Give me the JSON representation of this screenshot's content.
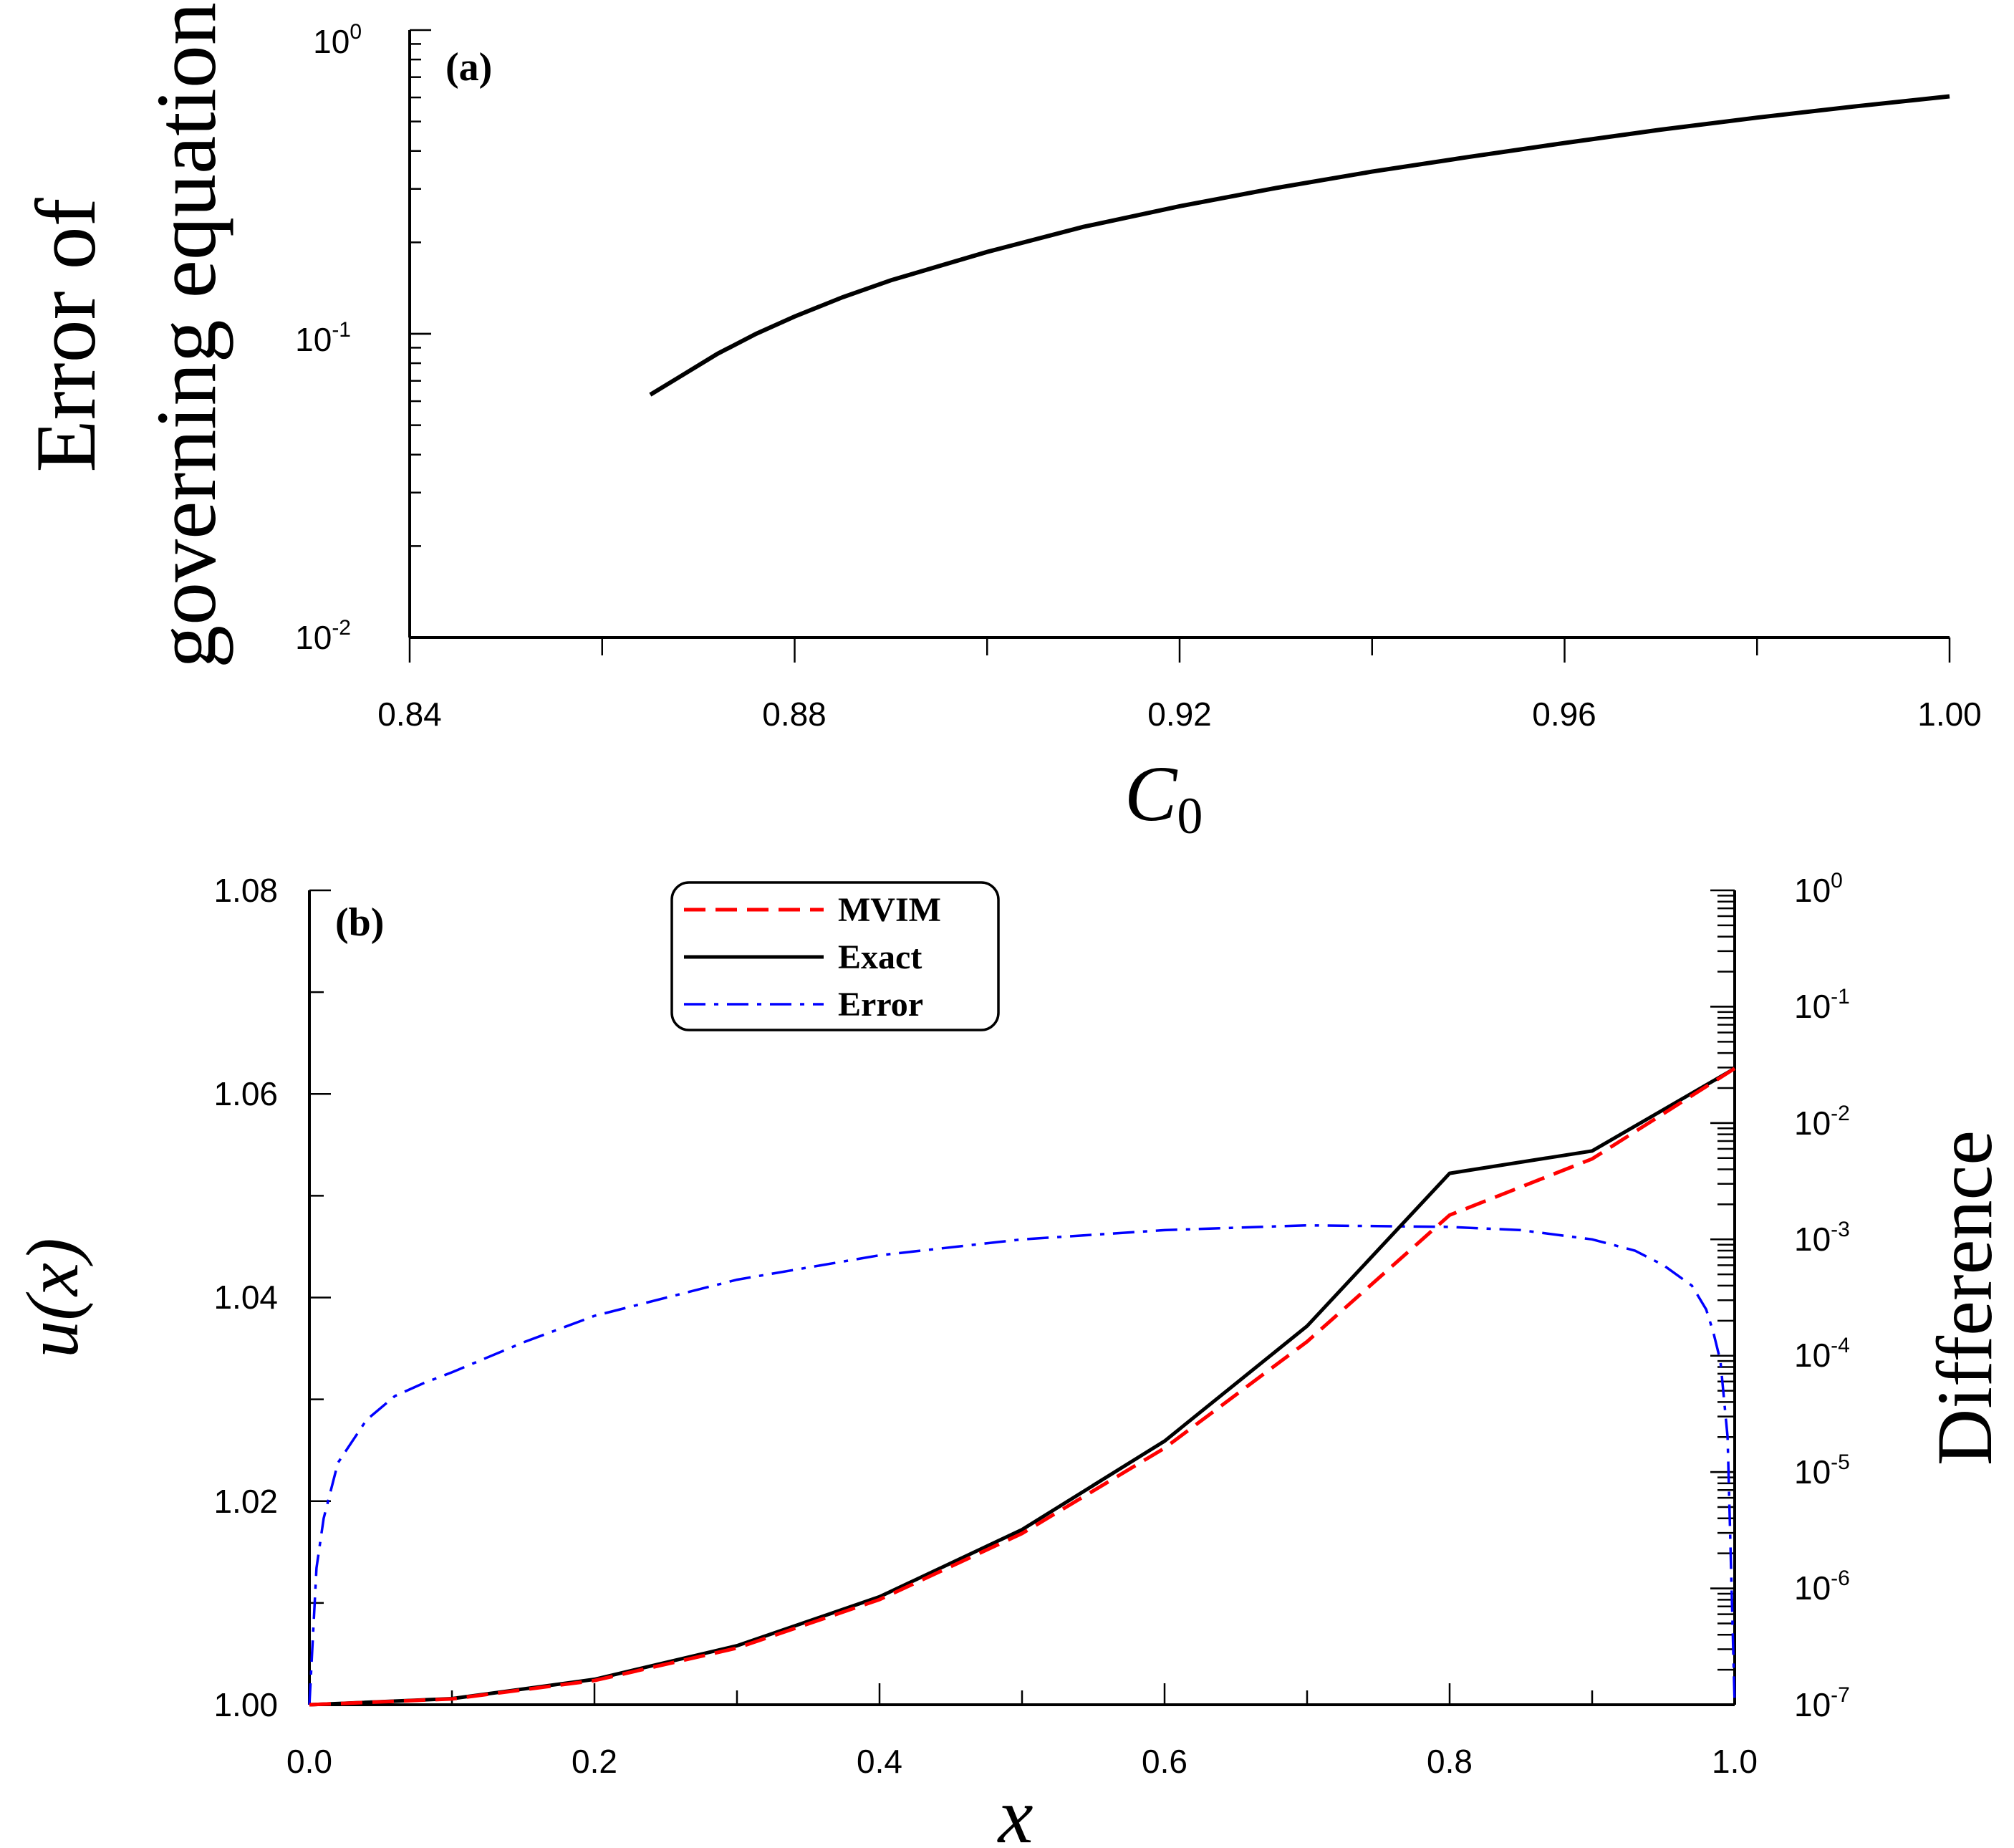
{
  "chart_data": [
    {
      "type": "line",
      "panel_label": "(a)",
      "title": "",
      "xlabel": "C",
      "xlabel_subscript": "0",
      "ylabel_lines": [
        "Error of",
        "governing equation"
      ],
      "xlim": [
        0.84,
        1.0
      ],
      "ylim": [
        0.01,
        1
      ],
      "yscale": "log",
      "x_tick_labels": [
        "0.84",
        "0.88",
        "0.92",
        "0.96",
        "1.00"
      ],
      "y_tick_labels": [
        {
          "base": "10",
          "exp": "0"
        },
        {
          "base": "10",
          "exp": "-1"
        },
        {
          "base": "10",
          "exp": "-2"
        }
      ],
      "series": [
        {
          "name": "Error of governing equation",
          "color": "#000000",
          "x": [
            0.865,
            0.868,
            0.872,
            0.876,
            0.88,
            0.885,
            0.89,
            0.9,
            0.91,
            0.92,
            0.93,
            0.94,
            0.95,
            0.96,
            0.97,
            0.98,
            0.99,
            1.0
          ],
          "y": [
            0.063,
            0.072,
            0.086,
            0.1,
            0.114,
            0.132,
            0.15,
            0.186,
            0.225,
            0.263,
            0.302,
            0.342,
            0.382,
            0.425,
            0.47,
            0.515,
            0.56,
            0.605
          ]
        }
      ]
    },
    {
      "type": "line",
      "panel_label": "(b)",
      "title": "",
      "xlabel": "x",
      "ylabel": "u(x)",
      "ylabel_right": "Difference",
      "xlim": [
        0,
        1
      ],
      "ylim": [
        1.0,
        1.08
      ],
      "ylim_right": [
        1e-07,
        1
      ],
      "yscale_right": "log",
      "x_tick_labels": [
        "0.0",
        "0.2",
        "0.4",
        "0.6",
        "0.8",
        "1.0"
      ],
      "y_tick_labels": [
        "1.00",
        "1.02",
        "1.04",
        "1.06",
        "1.08"
      ],
      "y_right_tick_labels": [
        {
          "base": "10",
          "exp": "0"
        },
        {
          "base": "10",
          "exp": "-1"
        },
        {
          "base": "10",
          "exp": "-2"
        },
        {
          "base": "10",
          "exp": "-3"
        },
        {
          "base": "10",
          "exp": "-4"
        },
        {
          "base": "10",
          "exp": "-5"
        },
        {
          "base": "10",
          "exp": "-6"
        },
        {
          "base": "10",
          "exp": "-7"
        }
      ],
      "legend": {
        "position": "top-center"
      },
      "series": [
        {
          "name": "MVIM",
          "color": "#ff0000",
          "dash": "long-dash",
          "axis": "left",
          "x": [
            0,
            0.1,
            0.2,
            0.3,
            0.4,
            0.5,
            0.6,
            0.7,
            0.8,
            0.9,
            1.0
          ],
          "y": [
            1.0,
            1.00057,
            1.00238,
            1.00557,
            1.01033,
            1.01682,
            1.02521,
            1.03567,
            1.0481,
            1.05362,
            1.0625
          ]
        },
        {
          "name": "Exact",
          "color": "#000000",
          "dash": "solid",
          "axis": "left",
          "x": [
            0,
            0.1,
            0.2,
            0.3,
            0.4,
            0.5,
            0.6,
            0.7,
            0.8,
            0.9,
            1.0
          ],
          "y": [
            1.0,
            1.0006,
            1.0025,
            1.0058,
            1.0106,
            1.0172,
            1.0259,
            1.0372,
            1.0522,
            1.0544,
            1.0625
          ]
        },
        {
          "name": "Error",
          "color": "#0000ff",
          "dash": "dash-dot",
          "axis": "right",
          "x": [
            0,
            0.005,
            0.01,
            0.02,
            0.04,
            0.06,
            0.08,
            0.1,
            0.15,
            0.2,
            0.3,
            0.4,
            0.5,
            0.6,
            0.7,
            0.8,
            0.85,
            0.9,
            0.93,
            0.95,
            0.97,
            0.98,
            0.985,
            0.99,
            0.995,
            1.0
          ],
          "y": [
            1e-07,
            1.5e-06,
            4e-06,
            1.2e-05,
            2.8e-05,
            4.5e-05,
            5.8e-05,
            7.2e-05,
            0.00013,
            0.00022,
            0.00045,
            0.00073,
            0.001,
            0.0012,
            0.00132,
            0.00128,
            0.0012,
            0.001,
            0.0008,
            0.0006,
            0.0004,
            0.00025,
            0.00016,
            9e-05,
            2e-05,
            1e-07
          ]
        }
      ]
    }
  ]
}
